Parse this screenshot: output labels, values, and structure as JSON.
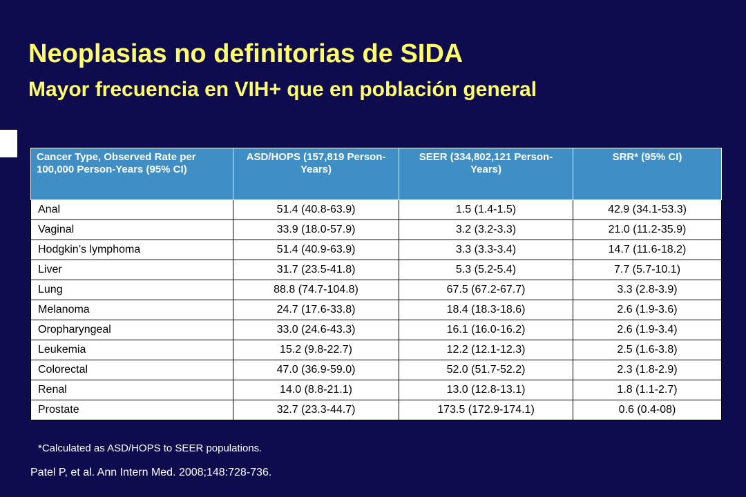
{
  "slide": {
    "title": "Neoplasias no definitorias de SIDA",
    "subtitle": "Mayor frecuencia en VIH+ que en población general"
  },
  "table": {
    "headers": [
      "Cancer Type, Observed Rate per 100,000 Person-Years (95% CI)",
      "ASD/HOPS (157,819 Person-Years)",
      "SEER (334,802,121 Person-Years)",
      "SRR* (95% CI)"
    ],
    "rows": [
      [
        "Anal",
        "51.4 (40.8-63.9)",
        "1.5 (1.4-1.5)",
        "42.9 (34.1-53.3)"
      ],
      [
        "Vaginal",
        "33.9 (18.0-57.9)",
        "3.2 (3.2-3.3)",
        "21.0 (11.2-35.9)"
      ],
      [
        "Hodgkin’s lymphoma",
        "51.4 (40.9-63.9)",
        "3.3 (3.3-3.4)",
        "14.7 (11.6-18.2)"
      ],
      [
        "Liver",
        "31.7 (23.5-41.8)",
        "5.3 (5.2-5.4)",
        "7.7 (5.7-10.1)"
      ],
      [
        "Lung",
        "88.8 (74.7-104.8)",
        "67.5 (67.2-67.7)",
        "3.3 (2.8-3.9)"
      ],
      [
        "Melanoma",
        "24.7 (17.6-33.8)",
        "18.4 (18.3-18.6)",
        "2.6 (1.9-3.6)"
      ],
      [
        "Oropharyngeal",
        "33.0 (24.6-43.3)",
        "16.1 (16.0-16.2)",
        "2.6 (1.9-3.4)"
      ],
      [
        "Leukemia",
        "15.2 (9.8-22.7)",
        "12.2 (12.1-12.3)",
        "2.5 (1.6-3.8)"
      ],
      [
        "Colorectal",
        "47.0 (36.9-59.0)",
        "52.0 (51.7-52.2)",
        "2.3 (1.8-2.9)"
      ],
      [
        "Renal",
        "14.0 (8.8-21.1)",
        "13.0 (12.8-13.1)",
        "1.8 (1.1-2.7)"
      ],
      [
        "Prostate",
        "32.7 (23.3-44.7)",
        "173.5 (172.9-174.1)",
        "0.6 (0.4-08)"
      ]
    ]
  },
  "footnote": "*Calculated as ASD/HOPS to SEER populations.",
  "citation": "Patel P, et al. Ann Intern Med. 2008;148:728-736."
}
